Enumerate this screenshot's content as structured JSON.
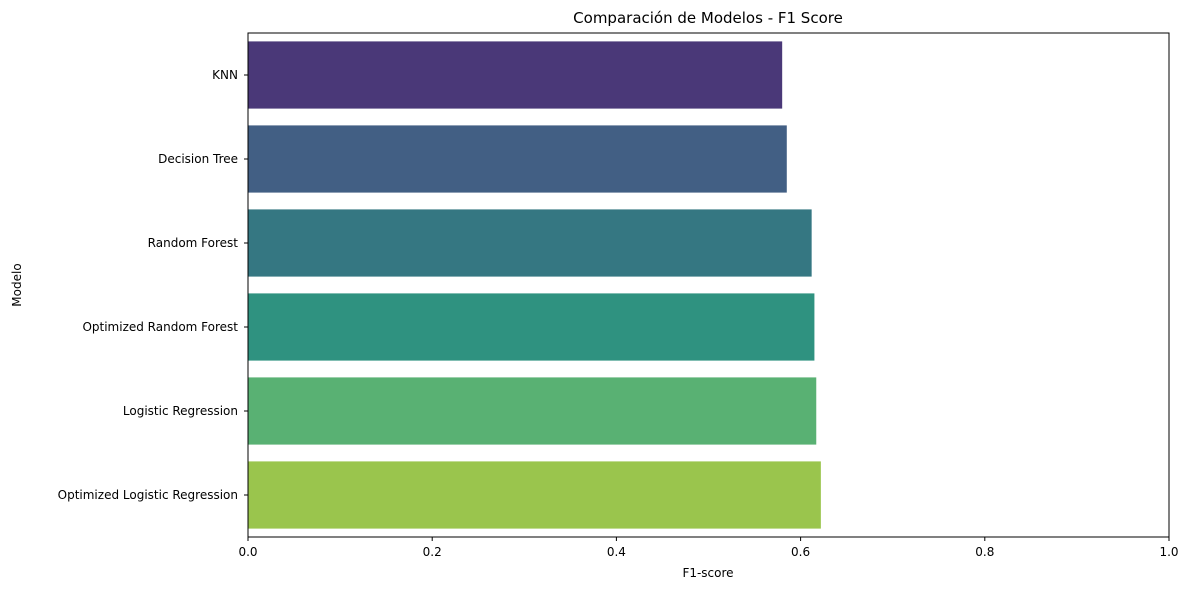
{
  "chart_data": {
    "type": "bar",
    "orientation": "horizontal",
    "title": "Comparación de Modelos - F1 Score",
    "xlabel": "F1-score",
    "ylabel": "Modelo",
    "xlim": [
      0,
      1.0
    ],
    "xticks": [
      "0.0",
      "0.2",
      "0.4",
      "0.6",
      "0.8",
      "1.0"
    ],
    "xtick_values": [
      0,
      0.2,
      0.4,
      0.6,
      0.8,
      1.0
    ],
    "grid": false,
    "categories": [
      "KNN",
      "Decision Tree",
      "Random Forest",
      "Optimized Random Forest",
      "Logistic Regression",
      "Optimized Logistic Regression"
    ],
    "values": [
      0.58,
      0.585,
      0.612,
      0.615,
      0.617,
      0.622
    ],
    "colors": [
      "#4a3878",
      "#425f84",
      "#357782",
      "#2f9280",
      "#59b173",
      "#9ac54d"
    ]
  }
}
